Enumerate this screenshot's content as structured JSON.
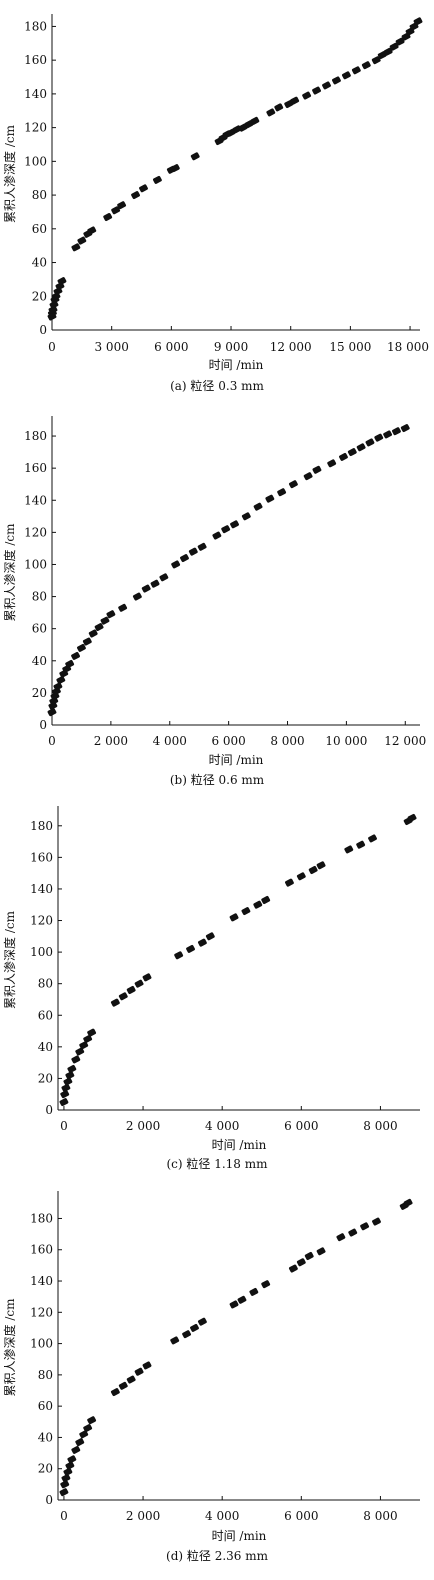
{
  "chart_data": [
    {
      "type": "scatter",
      "caption": "(a) 粒径 0.3 mm",
      "xlabel": "时间 /min",
      "ylabel": "累积人渗深度 /cm",
      "xlim": [
        0,
        18500
      ],
      "ylim": [
        0,
        185
      ],
      "xticks": [
        0,
        3000,
        6000,
        9000,
        12000,
        15000,
        18000
      ],
      "xtick_labels": [
        "0",
        "3 000",
        "6 000",
        "9 000",
        "12 000",
        "15 000",
        "18 000"
      ],
      "yticks": [
        0,
        20,
        40,
        60,
        80,
        100,
        120,
        140,
        160,
        180
      ],
      "ytick_labels": [
        "0",
        "20",
        "40",
        "60",
        "80",
        "100",
        "120",
        "140",
        "160",
        "180"
      ],
      "series": [
        {
          "x": [
            0,
            20,
            50,
            100,
            150,
            200,
            300,
            400,
            500,
            1200,
            1500,
            1800,
            2000,
            2800,
            3200,
            3500,
            4200,
            4600,
            5300,
            6000,
            6200,
            7200,
            8400,
            8600,
            8800,
            9000,
            9300,
            9600,
            9900,
            10200,
            11000,
            11400,
            11900,
            12200,
            12800,
            13300,
            13800,
            14300,
            14800,
            15300,
            15800,
            16300,
            16600,
            16900,
            17200,
            17500,
            17800,
            18000,
            18200,
            18400
          ],
          "y": [
            8,
            10,
            12,
            15,
            18,
            20,
            23,
            26,
            29,
            49,
            53,
            57,
            59,
            67,
            71,
            74,
            80,
            84,
            89,
            95,
            96,
            103,
            112,
            114,
            116,
            117,
            119,
            120,
            122,
            124,
            129,
            132,
            134,
            136,
            139,
            142,
            145,
            148,
            151,
            154,
            157,
            160,
            163,
            165,
            168,
            171,
            174,
            177,
            180,
            183
          ]
        }
      ]
    },
    {
      "type": "scatter",
      "caption": "(b) 粒径 0.6 mm",
      "xlabel": "时间 /min",
      "ylabel": "累积人渗深度 /cm",
      "xlim": [
        0,
        12500
      ],
      "ylim": [
        0,
        190
      ],
      "xticks": [
        0,
        2000,
        4000,
        6000,
        8000,
        10000,
        12000
      ],
      "xtick_labels": [
        "0",
        "2 000",
        "4 000",
        "6 000",
        "8 000",
        "10 000",
        "12 000"
      ],
      "yticks": [
        0,
        20,
        40,
        60,
        80,
        100,
        120,
        140,
        160,
        180
      ],
      "ytick_labels": [
        "0",
        "20",
        "40",
        "60",
        "80",
        "100",
        "120",
        "140",
        "160",
        "180"
      ],
      "series": [
        {
          "x": [
            0,
            30,
            60,
            100,
            150,
            200,
            300,
            400,
            500,
            600,
            800,
            1000,
            1200,
            1400,
            1600,
            1800,
            2000,
            2400,
            2900,
            3200,
            3500,
            3800,
            4200,
            4500,
            4800,
            5100,
            5600,
            5900,
            6200,
            6600,
            7000,
            7400,
            7800,
            8200,
            8700,
            9000,
            9500,
            9900,
            10200,
            10500,
            10800,
            11100,
            11400,
            11700,
            12000
          ],
          "y": [
            8,
            12,
            15,
            18,
            21,
            24,
            28,
            32,
            35,
            38,
            43,
            48,
            52,
            57,
            61,
            65,
            69,
            73,
            80,
            85,
            88,
            92,
            100,
            104,
            108,
            111,
            118,
            122,
            125,
            130,
            136,
            141,
            145,
            150,
            155,
            159,
            163,
            167,
            170,
            173,
            176,
            179,
            181,
            183,
            185
          ]
        }
      ]
    },
    {
      "type": "scatter",
      "caption": "(c) 粒径 1.18 mm",
      "xlabel": "时间 /min",
      "ylabel": "累积人渗深度 /cm",
      "xlim": [
        -150,
        9000
      ],
      "ylim": [
        0,
        190
      ],
      "xticks": [
        0,
        2000,
        4000,
        6000,
        8000
      ],
      "xtick_labels": [
        "0",
        "2 000",
        "4 000",
        "6 000",
        "8 000"
      ],
      "yticks": [
        0,
        20,
        40,
        60,
        80,
        100,
        120,
        140,
        160,
        180
      ],
      "ytick_labels": [
        "0",
        "20",
        "40",
        "60",
        "80",
        "100",
        "120",
        "140",
        "160",
        "180"
      ],
      "series": [
        {
          "x": [
            0,
            20,
            50,
            100,
            150,
            200,
            300,
            400,
            500,
            600,
            700,
            1300,
            1500,
            1700,
            1900,
            2100,
            2900,
            3200,
            3500,
            3700,
            4300,
            4600,
            4900,
            5100,
            5700,
            6000,
            6300,
            6500,
            7200,
            7500,
            7800,
            8700,
            8800
          ],
          "y": [
            5,
            10,
            14,
            18,
            22,
            26,
            32,
            37,
            41,
            45,
            49,
            68,
            72,
            76,
            80,
            84,
            98,
            102,
            106,
            110,
            122,
            126,
            130,
            133,
            144,
            148,
            152,
            155,
            165,
            168,
            172,
            183,
            185
          ]
        }
      ]
    },
    {
      "type": "scatter",
      "caption": "(d) 粒径 2.36 mm",
      "xlabel": "时间 /min",
      "ylabel": "累积人渗深度 /cm",
      "xlim": [
        -150,
        9000
      ],
      "ylim": [
        0,
        195
      ],
      "xticks": [
        0,
        2000,
        4000,
        6000,
        8000
      ],
      "xtick_labels": [
        "0",
        "2 000",
        "4 000",
        "6 000",
        "8 000"
      ],
      "yticks": [
        0,
        20,
        40,
        60,
        80,
        100,
        120,
        140,
        160,
        180
      ],
      "ytick_labels": [
        "0",
        "20",
        "40",
        "60",
        "80",
        "100",
        "120",
        "140",
        "160",
        "180"
      ],
      "series": [
        {
          "x": [
            0,
            20,
            50,
            100,
            150,
            200,
            300,
            400,
            500,
            600,
            700,
            1300,
            1500,
            1700,
            1900,
            2100,
            2800,
            3100,
            3300,
            3500,
            4300,
            4500,
            4800,
            5100,
            5800,
            6000,
            6200,
            6500,
            7000,
            7300,
            7600,
            7900,
            8600,
            8700
          ],
          "y": [
            5,
            10,
            14,
            18,
            22,
            26,
            32,
            37,
            42,
            46,
            51,
            69,
            73,
            77,
            82,
            86,
            102,
            106,
            110,
            114,
            125,
            128,
            133,
            138,
            148,
            152,
            156,
            159,
            168,
            171,
            175,
            178,
            188,
            190
          ]
        }
      ]
    }
  ]
}
